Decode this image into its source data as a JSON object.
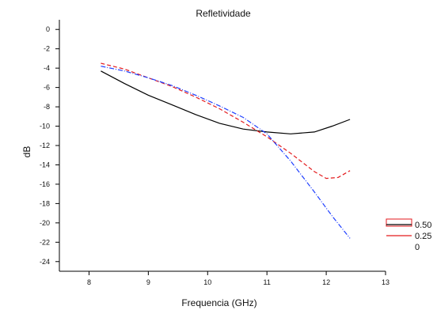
{
  "chart_data": {
    "type": "line",
    "title": "Refletividade",
    "xlabel": "Frequencia (GHz)",
    "ylabel": "dB",
    "xlim": [
      7.5,
      13
    ],
    "ylim": [
      -25,
      1
    ],
    "xticks": [
      8,
      9,
      10,
      11,
      12,
      13
    ],
    "yticks": [
      0,
      -2,
      -4,
      -6,
      -8,
      -10,
      -12,
      -14,
      -16,
      -18,
      -20,
      -22,
      -24
    ],
    "grid": false,
    "legend_position": "right",
    "series": [
      {
        "name": "0.50",
        "color": "#000000",
        "dash": "solid",
        "x": [
          8.2,
          8.6,
          9.0,
          9.4,
          9.8,
          10.2,
          10.6,
          11.0,
          11.4,
          11.8,
          12.1,
          12.4
        ],
        "y": [
          -4.3,
          -5.6,
          -6.8,
          -7.8,
          -8.8,
          -9.7,
          -10.3,
          -10.6,
          -10.8,
          -10.6,
          -10.0,
          -9.3
        ]
      },
      {
        "name": "0.25",
        "color": "#e31a1c",
        "dash": "dashed",
        "x": [
          8.2,
          8.6,
          9.0,
          9.4,
          9.8,
          10.2,
          10.6,
          11.0,
          11.4,
          11.8,
          12.0,
          12.2,
          12.4
        ],
        "y": [
          -3.5,
          -4.1,
          -5.0,
          -5.9,
          -7.0,
          -8.2,
          -9.6,
          -11.1,
          -12.8,
          -14.7,
          -15.4,
          -15.3,
          -14.6
        ]
      },
      {
        "name": "0",
        "color": "#1f3fff",
        "dash": "dashdot",
        "x": [
          8.2,
          8.6,
          9.0,
          9.4,
          9.8,
          10.2,
          10.6,
          11.0,
          11.4,
          11.8,
          12.1,
          12.4
        ],
        "y": [
          -3.8,
          -4.3,
          -5.0,
          -5.8,
          -6.8,
          -7.9,
          -9.1,
          -10.8,
          -13.6,
          -16.8,
          -19.3,
          -21.6
        ]
      }
    ]
  }
}
